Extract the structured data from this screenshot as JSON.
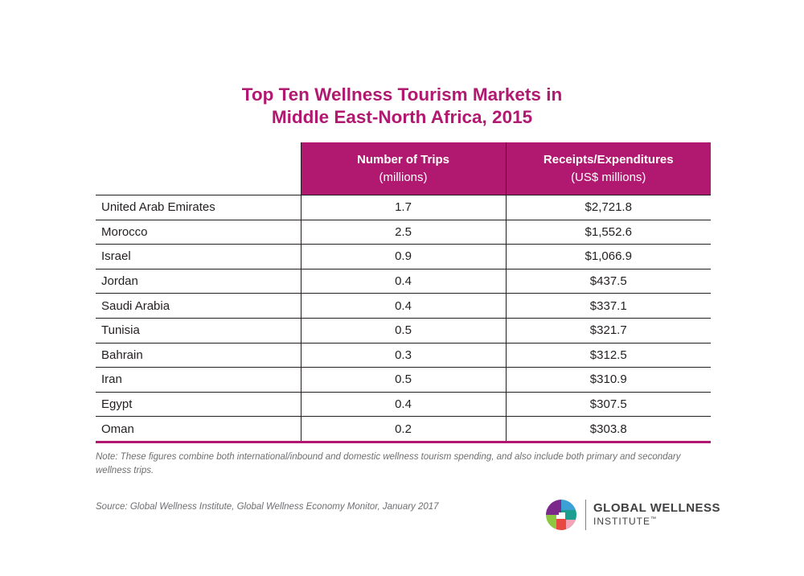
{
  "title_line1": "Top Ten Wellness Tourism Markets in",
  "title_line2": "Middle East-North Africa, 2015",
  "accent_color": "#b0196f",
  "chart_data": {
    "type": "table",
    "title": "Top Ten Wellness Tourism Markets in Middle East-North Africa, 2015",
    "columns": [
      {
        "label": "Number of Trips",
        "sublabel": "(millions)"
      },
      {
        "label": "Receipts/Expenditures",
        "sublabel": "(US$ millions)"
      }
    ],
    "rows": [
      {
        "country": "United Arab Emirates",
        "trips": "1.7",
        "receipts": "$2,721.8"
      },
      {
        "country": "Morocco",
        "trips": "2.5",
        "receipts": "$1,552.6"
      },
      {
        "country": "Israel",
        "trips": "0.9",
        "receipts": "$1,066.9"
      },
      {
        "country": "Jordan",
        "trips": "0.4",
        "receipts": "$437.5"
      },
      {
        "country": "Saudi Arabia",
        "trips": "0.4",
        "receipts": "$337.1"
      },
      {
        "country": "Tunisia",
        "trips": "0.5",
        "receipts": "$321.7"
      },
      {
        "country": "Bahrain",
        "trips": "0.3",
        "receipts": "$312.5"
      },
      {
        "country": "Iran",
        "trips": "0.5",
        "receipts": "$310.9"
      },
      {
        "country": "Egypt",
        "trips": "0.4",
        "receipts": "$307.5"
      },
      {
        "country": "Oman",
        "trips": "0.2",
        "receipts": "$303.8"
      }
    ]
  },
  "note": "Note: These figures combine both international/inbound and domestic wellness tourism spending, and also include both primary and secondary wellness trips.",
  "source": "Source: Global Wellness Institute, Global Wellness Economy Monitor, January 2017",
  "logo": {
    "line1": "GLOBAL WELLNESS",
    "line2": "INSTITUTE",
    "trademark": "™",
    "colors": [
      "#7b2a8c",
      "#3aa0d6",
      "#8dc63f",
      "#e8483f",
      "#1b9e8f",
      "#f5a3b6"
    ]
  }
}
